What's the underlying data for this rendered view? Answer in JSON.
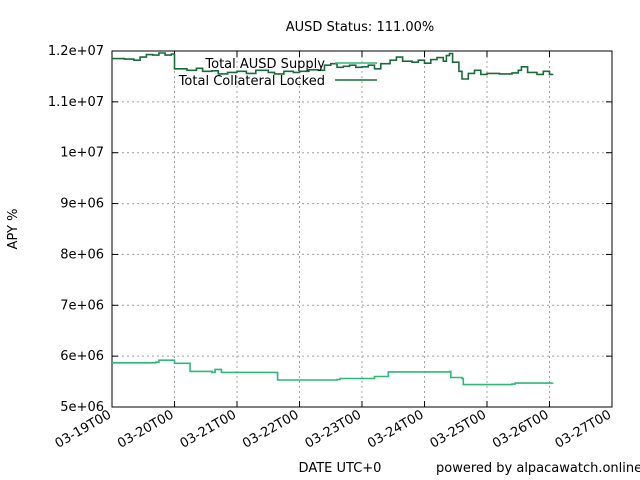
{
  "chart_data": {
    "type": "line",
    "title": "AUSD Status: 111.00%",
    "xlabel": "DATE UTC+0",
    "ylabel": "APY %",
    "footer": "powered by alpacawatch.online",
    "xlim": [
      "03-19T00",
      "03-27T00"
    ],
    "ylim": [
      5000000,
      12000000
    ],
    "x_ticks": [
      "03-19T00",
      "03-20T00",
      "03-21T00",
      "03-22T00",
      "03-23T00",
      "03-24T00",
      "03-25T00",
      "03-26T00",
      "03-27T00"
    ],
    "y_ticks": [
      {
        "value": 5000000,
        "label": "5e+06"
      },
      {
        "value": 6000000,
        "label": "6e+06"
      },
      {
        "value": 7000000,
        "label": "7e+06"
      },
      {
        "value": 8000000,
        "label": "8e+06"
      },
      {
        "value": 9000000,
        "label": "9e+06"
      },
      {
        "value": 10000000,
        "label": "1e+07"
      },
      {
        "value": 11000000,
        "label": "1.1e+07"
      },
      {
        "value": 12000000,
        "label": "1.2e+07"
      }
    ],
    "grid": true,
    "legend_position": "top-left",
    "series": [
      {
        "name": "Total AUSD Supply",
        "color": "#2db87a",
        "points": [
          [
            0.0,
            5870000
          ],
          [
            0.4,
            5870000
          ],
          [
            0.7,
            5880000
          ],
          [
            0.75,
            5920000
          ],
          [
            0.98,
            5920000
          ],
          [
            1.0,
            5860000
          ],
          [
            1.22,
            5860000
          ],
          [
            1.25,
            5700000
          ],
          [
            1.6,
            5680000
          ],
          [
            1.65,
            5740000
          ],
          [
            1.75,
            5680000
          ],
          [
            2.6,
            5680000
          ],
          [
            2.65,
            5530000
          ],
          [
            3.6,
            5540000
          ],
          [
            3.65,
            5560000
          ],
          [
            4.15,
            5560000
          ],
          [
            4.2,
            5600000
          ],
          [
            4.4,
            5600000
          ],
          [
            4.42,
            5690000
          ],
          [
            5.4,
            5700000
          ],
          [
            5.42,
            5580000
          ],
          [
            5.6,
            5560000
          ],
          [
            5.62,
            5440000
          ],
          [
            6.4,
            5450000
          ],
          [
            6.45,
            5470000
          ],
          [
            7.05,
            5480000
          ]
        ]
      },
      {
        "name": "Total Collateral Locked",
        "color": "#1a6b3c",
        "points": [
          [
            0.0,
            11850000
          ],
          [
            0.2,
            11840000
          ],
          [
            0.35,
            11820000
          ],
          [
            0.45,
            11880000
          ],
          [
            0.55,
            11930000
          ],
          [
            0.65,
            11920000
          ],
          [
            0.75,
            11960000
          ],
          [
            0.85,
            11920000
          ],
          [
            0.95,
            11940000
          ],
          [
            1.0,
            11650000
          ],
          [
            1.2,
            11620000
          ],
          [
            1.35,
            11660000
          ],
          [
            1.45,
            11600000
          ],
          [
            1.6,
            11610000
          ],
          [
            1.7,
            11550000
          ],
          [
            1.85,
            11580000
          ],
          [
            2.0,
            11600000
          ],
          [
            2.15,
            11560000
          ],
          [
            2.3,
            11620000
          ],
          [
            2.5,
            11580000
          ],
          [
            2.6,
            11550000
          ],
          [
            2.75,
            11600000
          ],
          [
            2.9,
            11580000
          ],
          [
            3.0,
            11600000
          ],
          [
            3.15,
            11630000
          ],
          [
            3.3,
            11620000
          ],
          [
            3.4,
            11720000
          ],
          [
            3.5,
            11750000
          ],
          [
            3.6,
            11680000
          ],
          [
            3.7,
            11700000
          ],
          [
            3.8,
            11720000
          ],
          [
            3.9,
            11680000
          ],
          [
            4.0,
            11690000
          ],
          [
            4.1,
            11720000
          ],
          [
            4.2,
            11650000
          ],
          [
            4.3,
            11750000
          ],
          [
            4.45,
            11820000
          ],
          [
            4.55,
            11880000
          ],
          [
            4.65,
            11800000
          ],
          [
            4.8,
            11780000
          ],
          [
            4.9,
            11820000
          ],
          [
            5.0,
            11760000
          ],
          [
            5.1,
            11830000
          ],
          [
            5.2,
            11870000
          ],
          [
            5.3,
            11800000
          ],
          [
            5.35,
            11910000
          ],
          [
            5.4,
            11950000
          ],
          [
            5.45,
            11780000
          ],
          [
            5.55,
            11600000
          ],
          [
            5.6,
            11450000
          ],
          [
            5.7,
            11560000
          ],
          [
            5.8,
            11620000
          ],
          [
            5.9,
            11540000
          ],
          [
            6.0,
            11560000
          ],
          [
            6.2,
            11550000
          ],
          [
            6.4,
            11570000
          ],
          [
            6.5,
            11620000
          ],
          [
            6.55,
            11690000
          ],
          [
            6.65,
            11580000
          ],
          [
            6.8,
            11540000
          ],
          [
            6.9,
            11600000
          ],
          [
            7.0,
            11540000
          ],
          [
            7.05,
            11550000
          ]
        ]
      }
    ]
  }
}
